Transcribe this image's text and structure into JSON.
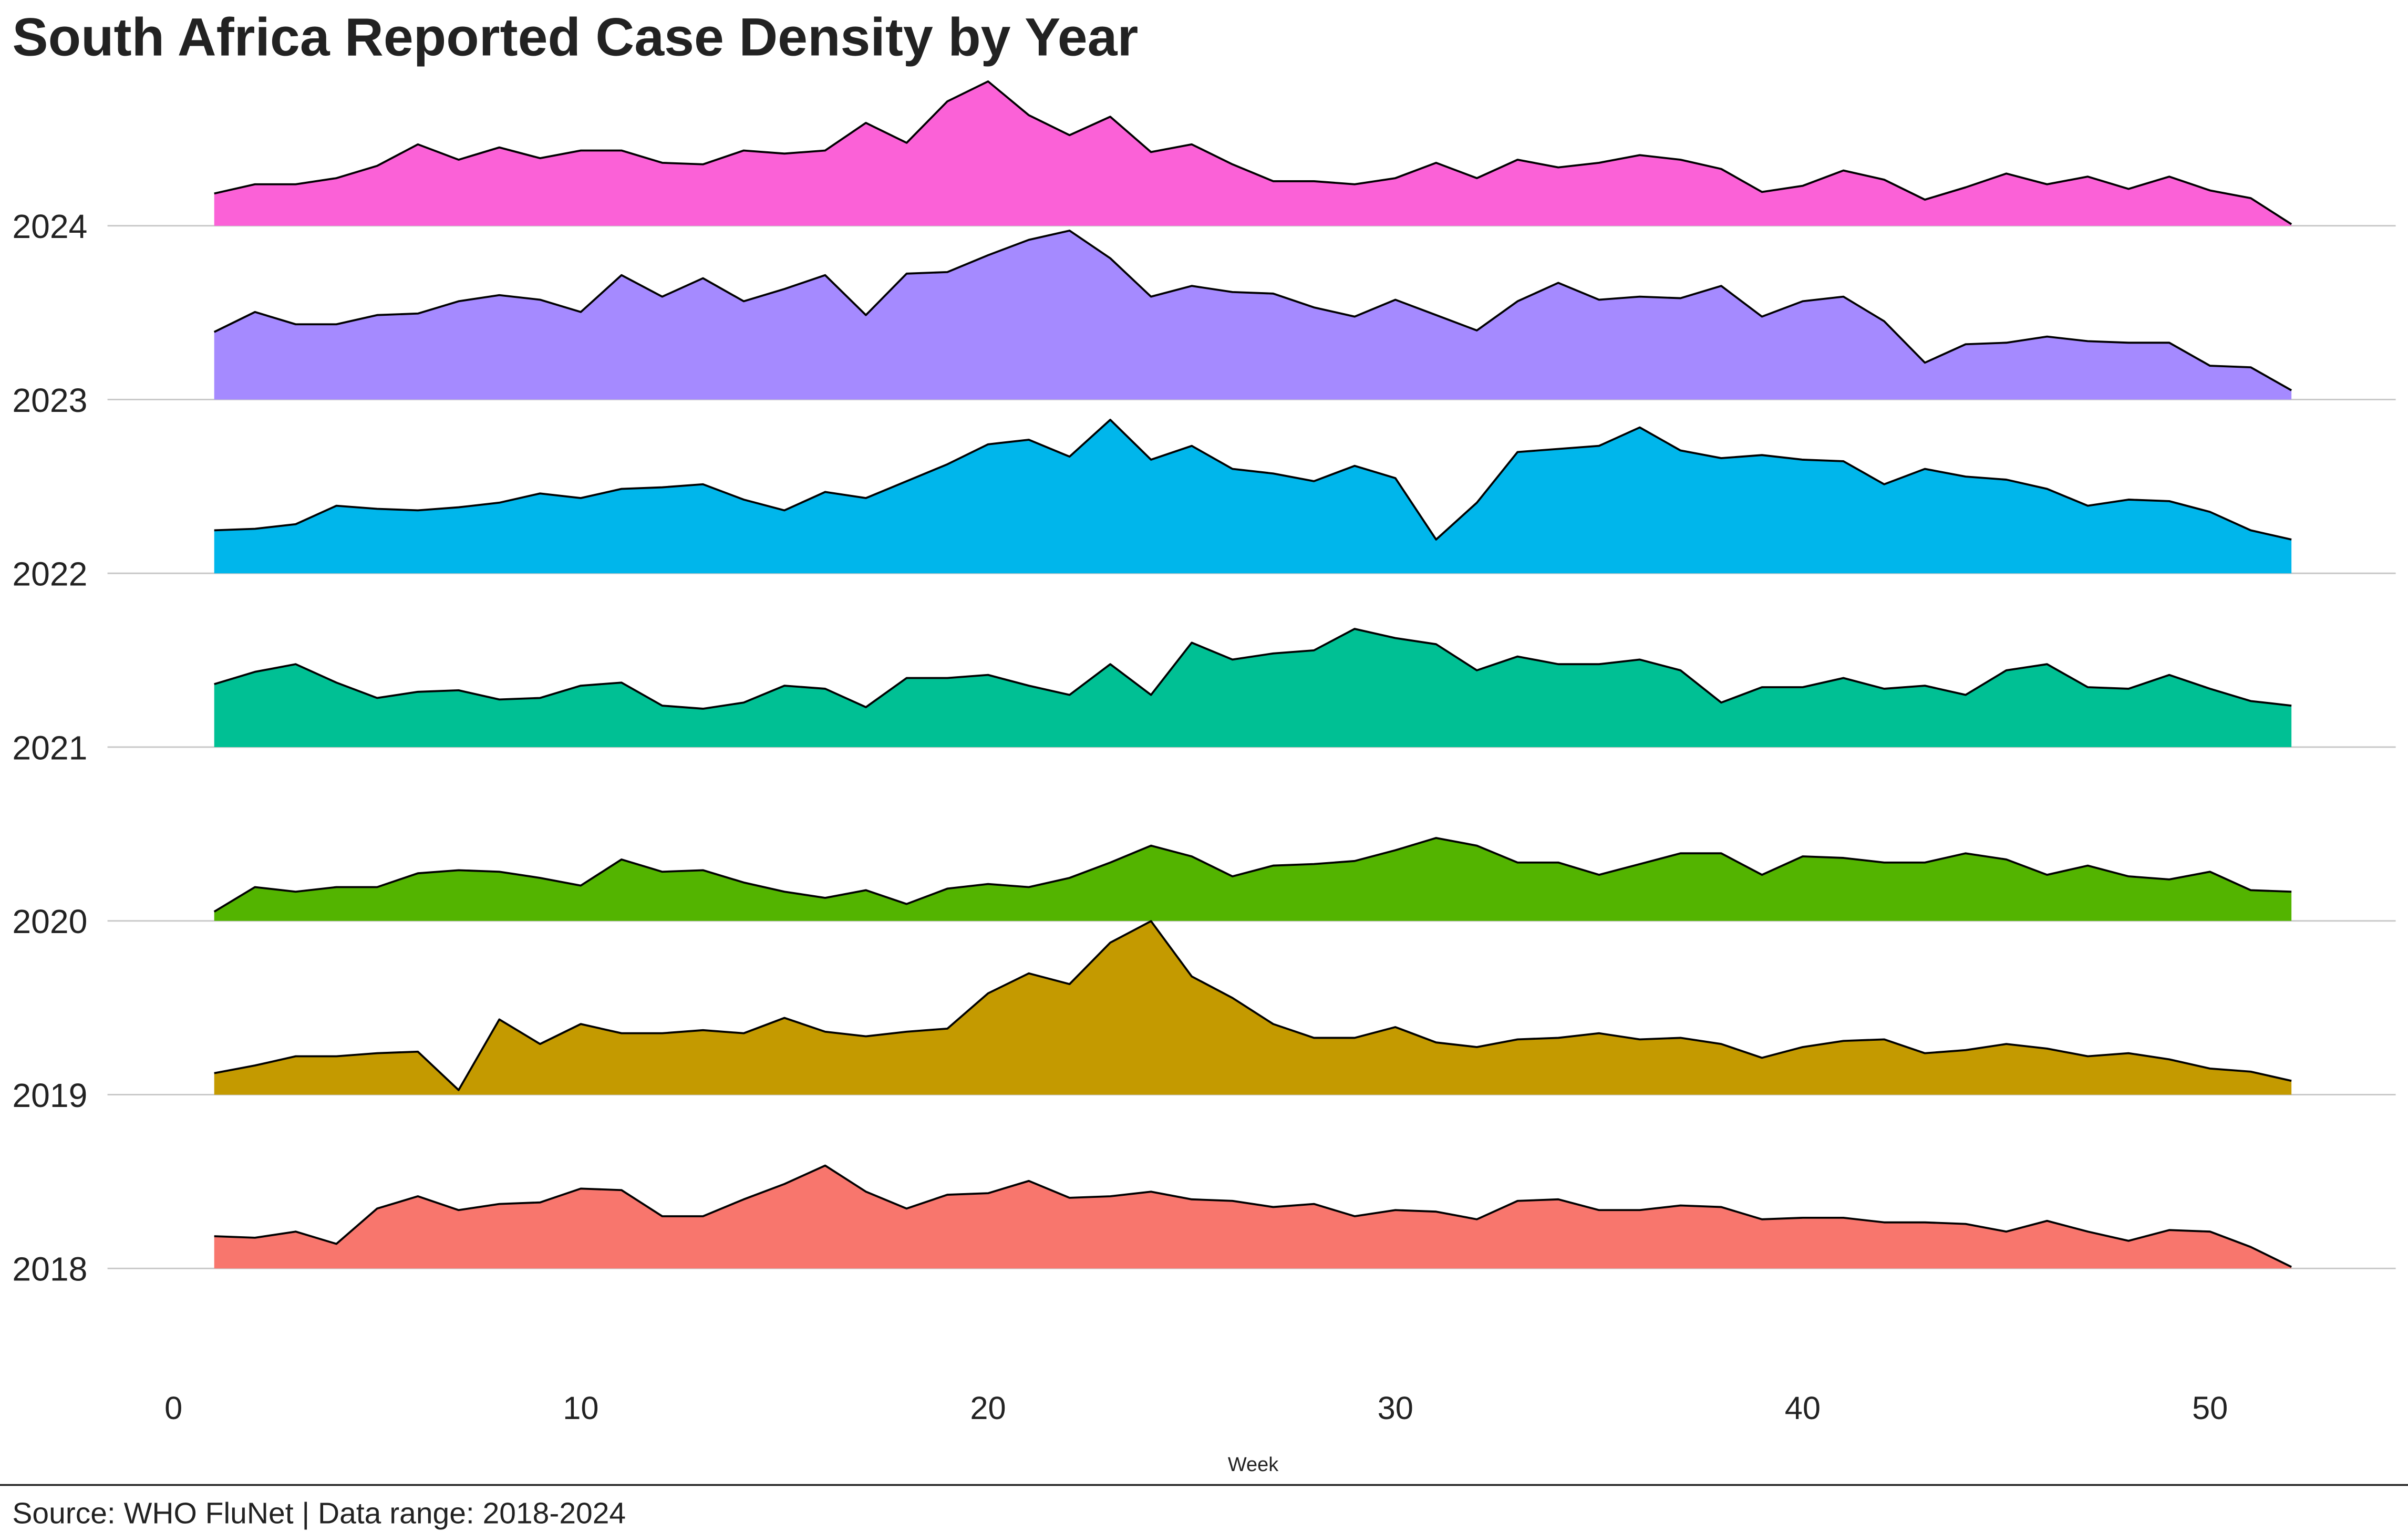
{
  "chart_data": {
    "type": "ridgeline",
    "title": "South Africa Reported Case Density by Year",
    "x_label": "Week",
    "caption": "Source: WHO FluNet | Data range: 2018-2024",
    "x": [
      1,
      2,
      3,
      4,
      5,
      6,
      7,
      8,
      9,
      10,
      11,
      12,
      13,
      14,
      15,
      16,
      17,
      18,
      19,
      20,
      21,
      22,
      23,
      24,
      25,
      26,
      27,
      28,
      29,
      30,
      31,
      32,
      33,
      34,
      35,
      36,
      37,
      38,
      39,
      40,
      41,
      42,
      43,
      44,
      45,
      46,
      47,
      48,
      49,
      50,
      51,
      52
    ],
    "xlim": [
      -1.62,
      54.56
    ],
    "xticks": [
      0,
      10,
      20,
      30,
      40,
      50
    ],
    "grid": true,
    "series": [
      {
        "name": "2018",
        "color": "#F8766D",
        "values": [
          21,
          20,
          24,
          16,
          39,
          47,
          38,
          42,
          43,
          52,
          51,
          34,
          34,
          45,
          55,
          67,
          50,
          39,
          48,
          49,
          57,
          46,
          47,
          50,
          45,
          44,
          40,
          42,
          34,
          38,
          37,
          32,
          44,
          45,
          38,
          38,
          41,
          40,
          32,
          33,
          33,
          30,
          30,
          29,
          24,
          31,
          24,
          18,
          25,
          24,
          14,
          1
        ]
      },
      {
        "name": "2019",
        "color": "#C49A00",
        "values": [
          14,
          19,
          25,
          25,
          27,
          28,
          3,
          49,
          33,
          46,
          40,
          40,
          42,
          40,
          50,
          41,
          38,
          41,
          43,
          66,
          79,
          72,
          99,
          113,
          77,
          63,
          46,
          37,
          37,
          44,
          34,
          31,
          36,
          37,
          40,
          36,
          37,
          33,
          24,
          31,
          35,
          36,
          27,
          29,
          33,
          30,
          25,
          27,
          23,
          17,
          15,
          9
        ]
      },
      {
        "name": "2020",
        "color": "#53B400",
        "values": [
          6,
          22,
          19,
          22,
          22,
          31,
          33,
          32,
          28,
          23,
          40,
          32,
          33,
          25,
          19,
          15,
          20,
          11,
          21,
          24,
          22,
          28,
          38,
          49,
          42,
          29,
          36,
          37,
          39,
          46,
          54,
          49,
          38,
          38,
          30,
          37,
          44,
          44,
          30,
          42,
          41,
          38,
          38,
          44,
          40,
          30,
          36,
          29,
          27,
          32,
          20,
          19
        ]
      },
      {
        "name": "2021",
        "color": "#00C094",
        "values": [
          41,
          49,
          54,
          42,
          32,
          36,
          37,
          31,
          32,
          40,
          42,
          27,
          25,
          29,
          40,
          38,
          26,
          45,
          45,
          47,
          40,
          34,
          54,
          34,
          68,
          57,
          61,
          63,
          77,
          71,
          67,
          50,
          59,
          54,
          54,
          57,
          50,
          29,
          39,
          39,
          45,
          38,
          40,
          34,
          50,
          54,
          39,
          38,
          47,
          38,
          30,
          27
        ]
      },
      {
        "name": "2022",
        "color": "#00B6EB",
        "values": [
          28,
          29,
          32,
          44,
          42,
          41,
          43,
          46,
          52,
          49,
          55,
          56,
          58,
          48,
          41,
          53,
          49,
          60,
          71,
          84,
          87,
          76,
          100,
          74,
          83,
          68,
          65,
          60,
          70,
          62,
          22,
          46,
          79,
          81,
          83,
          95,
          80,
          75,
          77,
          74,
          73,
          58,
          68,
          63,
          61,
          55,
          44,
          48,
          47,
          40,
          28,
          22
        ]
      },
      {
        "name": "2023",
        "color": "#A58AFF",
        "values": [
          44,
          57,
          49,
          49,
          55,
          56,
          64,
          68,
          65,
          57,
          81,
          67,
          79,
          64,
          72,
          81,
          55,
          82,
          83,
          94,
          104,
          110,
          92,
          67,
          74,
          70,
          69,
          60,
          54,
          65,
          55,
          45,
          64,
          76,
          65,
          67,
          66,
          74,
          54,
          64,
          67,
          51,
          24,
          36,
          37,
          41,
          38,
          37,
          37,
          22,
          21,
          6
        ]
      },
      {
        "name": "2024",
        "color": "#FB61D7",
        "values": [
          21,
          27,
          27,
          31,
          39,
          53,
          43,
          51,
          44,
          49,
          49,
          41,
          40,
          49,
          47,
          49,
          67,
          54,
          81,
          94,
          72,
          59,
          71,
          48,
          53,
          40,
          29,
          29,
          27,
          31,
          41,
          31,
          43,
          38,
          41,
          46,
          43,
          37,
          22,
          26,
          36,
          30,
          17,
          25,
          34,
          27,
          32,
          24,
          32,
          23,
          18,
          1
        ]
      }
    ]
  }
}
